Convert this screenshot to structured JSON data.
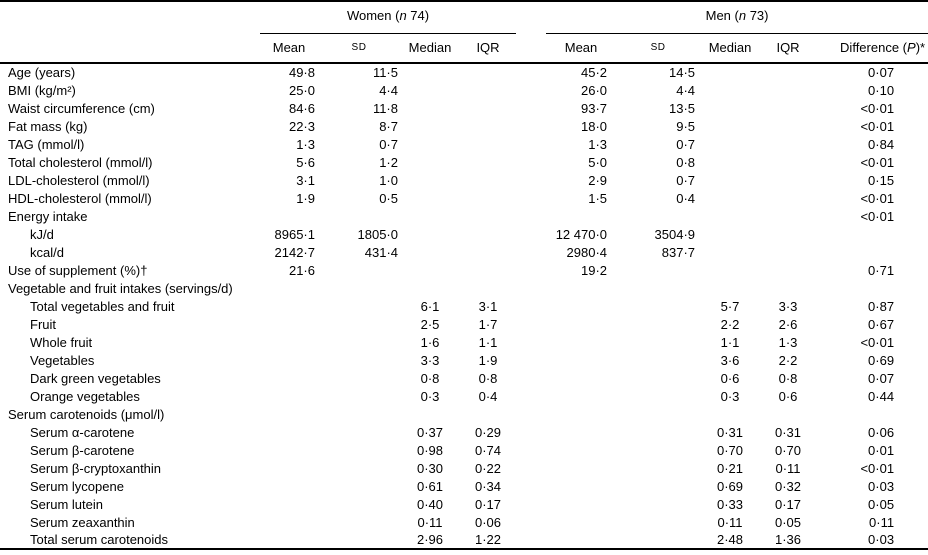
{
  "table": {
    "groups": {
      "women": {
        "pre": "Women (",
        "n": "n",
        "post": " 74)"
      },
      "men": {
        "pre": "Men (",
        "n": "n",
        "post": " 73)"
      }
    },
    "columns": [
      "Mean",
      "SD",
      "Median",
      "IQR"
    ],
    "difference": {
      "pre": "Difference (",
      "p": "P",
      "post": ")*"
    },
    "rows": [
      {
        "label": "Age (years)",
        "indent": 0,
        "values": [
          "49·8",
          "11·5",
          "",
          "",
          "45·2",
          "14·5",
          "",
          "",
          "0·07"
        ]
      },
      {
        "label": "BMI (kg/m²)",
        "indent": 0,
        "values": [
          "25·0",
          "4·4",
          "",
          "",
          "26·0",
          "4·4",
          "",
          "",
          "0·10"
        ]
      },
      {
        "label": "Waist circumference (cm)",
        "indent": 0,
        "values": [
          "84·6",
          "11·8",
          "",
          "",
          "93·7",
          "13·5",
          "",
          "",
          "<0·01"
        ]
      },
      {
        "label": "Fat mass (kg)",
        "indent": 0,
        "values": [
          "22·3",
          "8·7",
          "",
          "",
          "18·0",
          "9·5",
          "",
          "",
          "<0·01"
        ]
      },
      {
        "label": "TAG (mmol/l)",
        "indent": 0,
        "values": [
          "1·3",
          "0·7",
          "",
          "",
          "1·3",
          "0·7",
          "",
          "",
          "0·84"
        ]
      },
      {
        "label": "Total cholesterol (mmol/l)",
        "indent": 0,
        "values": [
          "5·6",
          "1·2",
          "",
          "",
          "5·0",
          "0·8",
          "",
          "",
          "<0·01"
        ]
      },
      {
        "label": "LDL-cholesterol (mmol/l)",
        "indent": 0,
        "values": [
          "3·1",
          "1·0",
          "",
          "",
          "2·9",
          "0·7",
          "",
          "",
          "0·15"
        ]
      },
      {
        "label": "HDL-cholesterol (mmol/l)",
        "indent": 0,
        "values": [
          "1·9",
          "0·5",
          "",
          "",
          "1·5",
          "0·4",
          "",
          "",
          "<0·01"
        ]
      },
      {
        "label": "Energy intake",
        "indent": 0,
        "values": [
          "",
          "",
          "",
          "",
          "",
          "",
          "",
          "",
          "<0·01"
        ]
      },
      {
        "label": "kJ/d",
        "indent": 1,
        "values": [
          "8965·1",
          "1805·0",
          "",
          "",
          "12 470·0",
          "3504·9",
          "",
          "",
          ""
        ]
      },
      {
        "label": "kcal/d",
        "indent": 1,
        "values": [
          "2142·7",
          "431·4",
          "",
          "",
          "2980·4",
          "837·7",
          "",
          "",
          ""
        ]
      },
      {
        "label": "Use of supplement (%)†",
        "indent": 0,
        "values": [
          "21·6",
          "",
          "",
          "",
          "19·2",
          "",
          "",
          "",
          "0·71"
        ]
      },
      {
        "label": "Vegetable and fruit intakes (servings/d)",
        "indent": 0,
        "values": [
          "",
          "",
          "",
          "",
          "",
          "",
          "",
          "",
          ""
        ]
      },
      {
        "label": "Total vegetables and fruit",
        "indent": 1,
        "values": [
          "",
          "",
          "6·1",
          "3·1",
          "",
          "",
          "5·7",
          "3·3",
          "0·87"
        ]
      },
      {
        "label": "Fruit",
        "indent": 1,
        "values": [
          "",
          "",
          "2·5",
          "1·7",
          "",
          "",
          "2·2",
          "2·6",
          "0·67"
        ]
      },
      {
        "label": "Whole fruit",
        "indent": 1,
        "values": [
          "",
          "",
          "1·6",
          "1·1",
          "",
          "",
          "1·1",
          "1·3",
          "<0·01"
        ]
      },
      {
        "label": "Vegetables",
        "indent": 1,
        "values": [
          "",
          "",
          "3·3",
          "1·9",
          "",
          "",
          "3·6",
          "2·2",
          "0·69"
        ]
      },
      {
        "label": "Dark green vegetables",
        "indent": 1,
        "values": [
          "",
          "",
          "0·8",
          "0·8",
          "",
          "",
          "0·6",
          "0·8",
          "0·07"
        ]
      },
      {
        "label": "Orange vegetables",
        "indent": 1,
        "values": [
          "",
          "",
          "0·3",
          "0·4",
          "",
          "",
          "0·3",
          "0·6",
          "0·44"
        ]
      },
      {
        "label": "Serum carotenoids (μmol/l)",
        "indent": 0,
        "values": [
          "",
          "",
          "",
          "",
          "",
          "",
          "",
          "",
          ""
        ]
      },
      {
        "label": "Serum α-carotene",
        "indent": 1,
        "values": [
          "",
          "",
          "0·37",
          "0·29",
          "",
          "",
          "0·31",
          "0·31",
          "0·06"
        ]
      },
      {
        "label": "Serum β-carotene",
        "indent": 1,
        "values": [
          "",
          "",
          "0·98",
          "0·74",
          "",
          "",
          "0·70",
          "0·70",
          "0·01"
        ]
      },
      {
        "label": "Serum β-cryptoxanthin",
        "indent": 1,
        "values": [
          "",
          "",
          "0·30",
          "0·22",
          "",
          "",
          "0·21",
          "0·11",
          "<0·01"
        ]
      },
      {
        "label": "Serum lycopene",
        "indent": 1,
        "values": [
          "",
          "",
          "0·61",
          "0·34",
          "",
          "",
          "0·69",
          "0·32",
          "0·03"
        ]
      },
      {
        "label": "Serum lutein",
        "indent": 1,
        "values": [
          "",
          "",
          "0·40",
          "0·17",
          "",
          "",
          "0·33",
          "0·17",
          "0·05"
        ]
      },
      {
        "label": "Serum zeaxanthin",
        "indent": 1,
        "values": [
          "",
          "",
          "0·11",
          "0·06",
          "",
          "",
          "0·11",
          "0·05",
          "0·11"
        ]
      },
      {
        "label": "Total serum carotenoids",
        "indent": 1,
        "values": [
          "",
          "",
          "2·96",
          "1·22",
          "",
          "",
          "2·48",
          "1·36",
          "0·03"
        ]
      }
    ]
  }
}
